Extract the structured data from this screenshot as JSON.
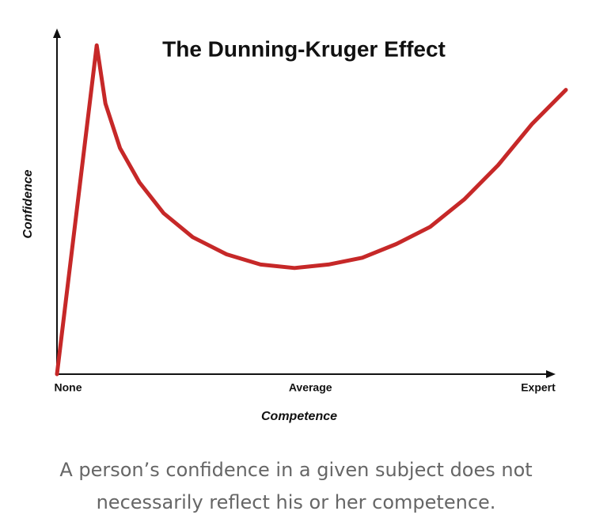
{
  "chart_data": {
    "type": "line",
    "title": "The Dunning-Kruger Effect",
    "x_label": "Competence",
    "y_label": "Confidence",
    "x": [
      0,
      8.2,
      10,
      13,
      17,
      22,
      28,
      35,
      42,
      49,
      56,
      63,
      70,
      77,
      84,
      91,
      98,
      105
    ],
    "values": [
      0,
      96,
      79,
      66,
      56,
      47,
      40,
      35,
      32,
      31,
      32,
      34,
      38,
      43,
      51,
      61,
      73,
      83
    ],
    "color": "#c62828",
    "xlim": [
      0,
      105
    ],
    "ylim": [
      0,
      100
    ],
    "xticks": [
      {
        "value": 0,
        "label": "None"
      },
      {
        "value": 50,
        "label": "Average"
      },
      {
        "value": 97,
        "label": "Expert"
      }
    ]
  },
  "caption": "A person’s confidence in a given subject does not necessarily reflect his or her competence."
}
